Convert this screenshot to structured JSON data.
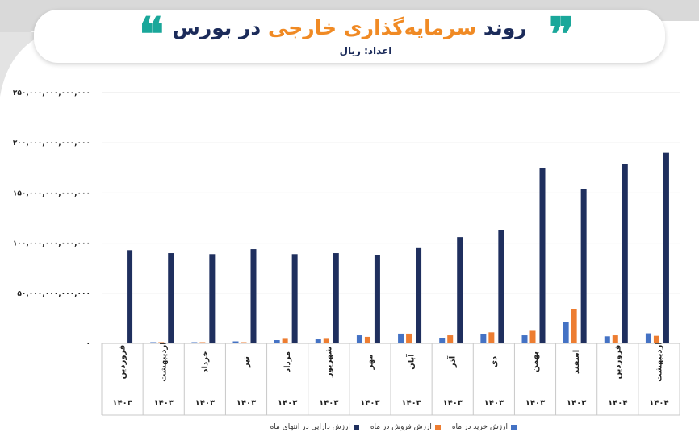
{
  "header": {
    "title_part1": "روند",
    "title_part2": "سرمایه‌گذاری خارجی",
    "title_part3": "در بورس",
    "subtitle": "اعداد: ریال",
    "quote_open": "❝",
    "quote_close": "❞"
  },
  "colors": {
    "buy": "#4472c4",
    "sell": "#ed7d31",
    "assets": "#1f2f5e",
    "accent_teal": "#1aa79a",
    "accent_orange": "#f08a24",
    "title_navy": "#1b2b5a"
  },
  "chart_data": {
    "type": "bar",
    "categories": [
      "فروردین",
      "اردیبهشت",
      "خرداد",
      "تیر",
      "مرداد",
      "شهریور",
      "مهر",
      "آبان",
      "آذر",
      "دی",
      "بهمن",
      "اسفند",
      "فروردین",
      "اردیبهشت"
    ],
    "years": [
      "۱۴۰۳",
      "۱۴۰۳",
      "۱۴۰۳",
      "۱۴۰۳",
      "۱۴۰۳",
      "۱۴۰۳",
      "۱۴۰۳",
      "۱۴۰۳",
      "۱۴۰۳",
      "۱۴۰۳",
      "۱۴۰۳",
      "۱۴۰۳",
      "۱۴۰۴",
      "۱۴۰۴"
    ],
    "series": [
      {
        "name": "ارزش خرید در ماه",
        "color": "#4472c4",
        "values": [
          600000000000.0,
          1200000000000.0,
          1200000000000.0,
          2000000000000.0,
          3200000000000.0,
          4000000000000.0,
          8000000000000.0,
          9700000000000.0,
          5000000000000.0,
          9000000000000.0,
          8000000000000.0,
          21000000000000.0,
          7000000000000.0,
          10000000000000.0
        ]
      },
      {
        "name": "ارزش فروش در ماه",
        "color": "#ed7d31",
        "values": [
          600000000000.0,
          1200000000000.0,
          1200000000000.0,
          1200000000000.0,
          4500000000000.0,
          4500000000000.0,
          6500000000000.0,
          9700000000000.0,
          8000000000000.0,
          11000000000000.0,
          12500000000000.0,
          34000000000000.0,
          8000000000000.0,
          7500000000000.0
        ]
      },
      {
        "name": "ارزش دارایی در انتهای ماه",
        "color": "#1f2f5e",
        "values": [
          93000000000000.0,
          90000000000000.0,
          89000000000000.0,
          94000000000000.0,
          89000000000000.0,
          90000000000000.0,
          88000000000000.0,
          95000000000000.0,
          106000000000000.0,
          113000000000000.0,
          175000000000000.0,
          154000000000000.0,
          179000000000000.0,
          190000000000000.0
        ]
      }
    ],
    "y_ticks": [
      "۲۵۰,۰۰۰,۰۰۰,۰۰۰,۰۰۰",
      "۲۰۰,۰۰۰,۰۰۰,۰۰۰,۰۰۰",
      "۱۵۰,۰۰۰,۰۰۰,۰۰۰,۰۰۰",
      "۱۰۰,۰۰۰,۰۰۰,۰۰۰,۰۰۰",
      "۵۰,۰۰۰,۰۰۰,۰۰۰,۰۰۰",
      "۰"
    ],
    "y_tick_values": [
      250000000000000.0,
      200000000000000.0,
      150000000000000.0,
      100000000000000.0,
      50000000000000.0,
      0
    ],
    "ylim": [
      0,
      250000000000000.0
    ],
    "grid": true,
    "legend_position": "bottom",
    "xlabel": "",
    "ylabel": ""
  }
}
